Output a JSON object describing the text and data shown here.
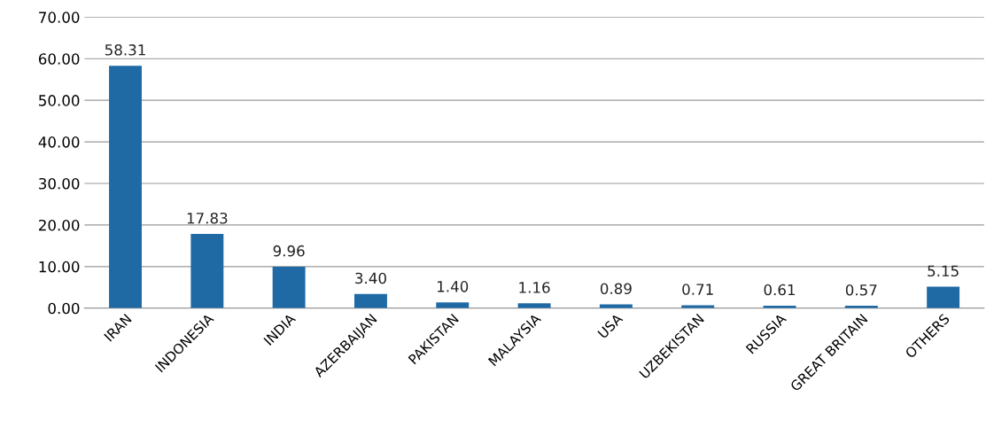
{
  "chart_data": {
    "type": "bar",
    "categories": [
      "IRAN",
      "INDONESIA",
      "INDIA",
      "AZERBAIJAN",
      "PAKISTAN",
      "MALAYSIA",
      "USA",
      "UZBEKISTAN",
      "RUSSIA",
      "GREAT BRITAIN",
      "OTHERS"
    ],
    "values": [
      58.31,
      17.83,
      9.96,
      3.4,
      1.4,
      1.16,
      0.89,
      0.71,
      0.61,
      0.57,
      5.15
    ],
    "value_labels": [
      "58.31",
      "17.83",
      "9.96",
      "3.40",
      "1.40",
      "1.16",
      "0.89",
      "0.71",
      "0.61",
      "0.57",
      "5.15"
    ],
    "color": "#1f6aa5",
    "ylim": [
      0,
      70
    ],
    "yticks": [
      {
        "value": 0,
        "label": "0.00"
      },
      {
        "value": 10,
        "label": "10.00"
      },
      {
        "value": 20,
        "label": "20.00"
      },
      {
        "value": 30,
        "label": "30.00"
      },
      {
        "value": 40,
        "label": "40.00"
      },
      {
        "value": 50,
        "label": "50.00"
      },
      {
        "value": 60,
        "label": "60.00"
      },
      {
        "value": 70,
        "label": "70.00"
      }
    ],
    "grid": "y"
  }
}
